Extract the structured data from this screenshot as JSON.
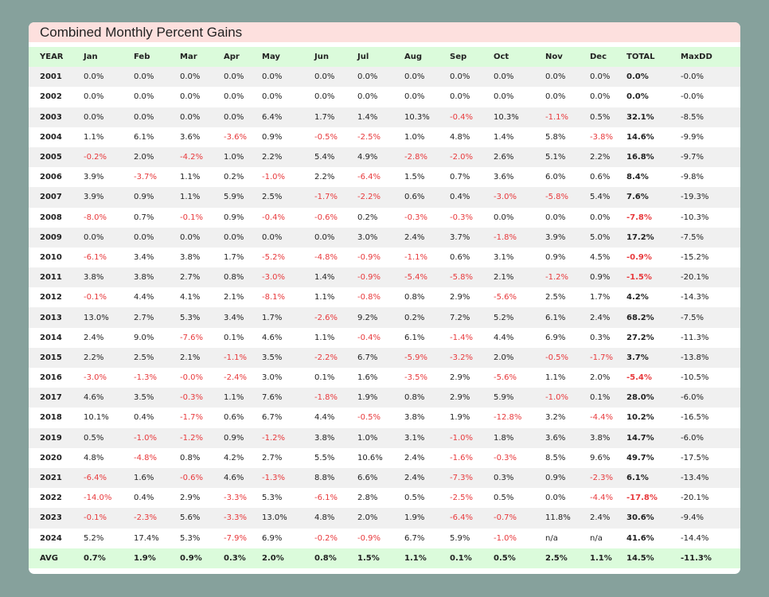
{
  "title": "Combined Monthly Percent Gains",
  "columns": [
    "YEAR",
    "Jan",
    "Feb",
    "Mar",
    "Apr",
    "May",
    "Jun",
    "Jul",
    "Aug",
    "Sep",
    "Oct",
    "Nov",
    "Dec",
    "TOTAL",
    "MaxDD"
  ],
  "rows": [
    [
      "2001",
      "0.0%",
      "0.0%",
      "0.0%",
      "0.0%",
      "0.0%",
      "0.0%",
      "0.0%",
      "0.0%",
      "0.0%",
      "0.0%",
      "0.0%",
      "0.0%",
      "0.0%",
      "-0.0%"
    ],
    [
      "2002",
      "0.0%",
      "0.0%",
      "0.0%",
      "0.0%",
      "0.0%",
      "0.0%",
      "0.0%",
      "0.0%",
      "0.0%",
      "0.0%",
      "0.0%",
      "0.0%",
      "0.0%",
      "-0.0%"
    ],
    [
      "2003",
      "0.0%",
      "0.0%",
      "0.0%",
      "0.0%",
      "6.4%",
      "1.7%",
      "1.4%",
      "10.3%",
      "-0.4%",
      "10.3%",
      "-1.1%",
      "0.5%",
      "32.1%",
      "-8.5%"
    ],
    [
      "2004",
      "1.1%",
      "6.1%",
      "3.6%",
      "-3.6%",
      "0.9%",
      "-0.5%",
      "-2.5%",
      "1.0%",
      "4.8%",
      "1.4%",
      "5.8%",
      "-3.8%",
      "14.6%",
      "-9.9%"
    ],
    [
      "2005",
      "-0.2%",
      "2.0%",
      "-4.2%",
      "1.0%",
      "2.2%",
      "5.4%",
      "4.9%",
      "-2.8%",
      "-2.0%",
      "2.6%",
      "5.1%",
      "2.2%",
      "16.8%",
      "-9.7%"
    ],
    [
      "2006",
      "3.9%",
      "-3.7%",
      "1.1%",
      "0.2%",
      "-1.0%",
      "2.2%",
      "-6.4%",
      "1.5%",
      "0.7%",
      "3.6%",
      "6.0%",
      "0.6%",
      "8.4%",
      "-9.8%"
    ],
    [
      "2007",
      "3.9%",
      "0.9%",
      "1.1%",
      "5.9%",
      "2.5%",
      "-1.7%",
      "-2.2%",
      "0.6%",
      "0.4%",
      "-3.0%",
      "-5.8%",
      "5.4%",
      "7.6%",
      "-19.3%"
    ],
    [
      "2008",
      "-8.0%",
      "0.7%",
      "-0.1%",
      "0.9%",
      "-0.4%",
      "-0.6%",
      "0.2%",
      "-0.3%",
      "-0.3%",
      "0.0%",
      "0.0%",
      "0.0%",
      "-7.8%",
      "-10.3%"
    ],
    [
      "2009",
      "0.0%",
      "0.0%",
      "0.0%",
      "0.0%",
      "0.0%",
      "0.0%",
      "3.0%",
      "2.4%",
      "3.7%",
      "-1.8%",
      "3.9%",
      "5.0%",
      "17.2%",
      "-7.5%"
    ],
    [
      "2010",
      "-6.1%",
      "3.4%",
      "3.8%",
      "1.7%",
      "-5.2%",
      "-4.8%",
      "-0.9%",
      "-1.1%",
      "0.6%",
      "3.1%",
      "0.9%",
      "4.5%",
      "-0.9%",
      "-15.2%"
    ],
    [
      "2011",
      "3.8%",
      "3.8%",
      "2.7%",
      "0.8%",
      "-3.0%",
      "1.4%",
      "-0.9%",
      "-5.4%",
      "-5.8%",
      "2.1%",
      "-1.2%",
      "0.9%",
      "-1.5%",
      "-20.1%"
    ],
    [
      "2012",
      "-0.1%",
      "4.4%",
      "4.1%",
      "2.1%",
      "-8.1%",
      "1.1%",
      "-0.8%",
      "0.8%",
      "2.9%",
      "-5.6%",
      "2.5%",
      "1.7%",
      "4.2%",
      "-14.3%"
    ],
    [
      "2013",
      "13.0%",
      "2.7%",
      "5.3%",
      "3.4%",
      "1.7%",
      "-2.6%",
      "9.2%",
      "0.2%",
      "7.2%",
      "5.2%",
      "6.1%",
      "2.4%",
      "68.2%",
      "-7.5%"
    ],
    [
      "2014",
      "2.4%",
      "9.0%",
      "-7.6%",
      "0.1%",
      "4.6%",
      "1.1%",
      "-0.4%",
      "6.1%",
      "-1.4%",
      "4.4%",
      "6.9%",
      "0.3%",
      "27.2%",
      "-11.3%"
    ],
    [
      "2015",
      "2.2%",
      "2.5%",
      "2.1%",
      "-1.1%",
      "3.5%",
      "-2.2%",
      "6.7%",
      "-5.9%",
      "-3.2%",
      "2.0%",
      "-0.5%",
      "-1.7%",
      "3.7%",
      "-13.8%"
    ],
    [
      "2016",
      "-3.0%",
      "-1.3%",
      "-0.0%",
      "-2.4%",
      "3.0%",
      "0.1%",
      "1.6%",
      "-3.5%",
      "2.9%",
      "-5.6%",
      "1.1%",
      "2.0%",
      "-5.4%",
      "-10.5%"
    ],
    [
      "2017",
      "4.6%",
      "3.5%",
      "-0.3%",
      "1.1%",
      "7.6%",
      "-1.8%",
      "1.9%",
      "0.8%",
      "2.9%",
      "5.9%",
      "-1.0%",
      "0.1%",
      "28.0%",
      "-6.0%"
    ],
    [
      "2018",
      "10.1%",
      "0.4%",
      "-1.7%",
      "0.6%",
      "6.7%",
      "4.4%",
      "-0.5%",
      "3.8%",
      "1.9%",
      "-12.8%",
      "3.2%",
      "-4.4%",
      "10.2%",
      "-16.5%"
    ],
    [
      "2019",
      "0.5%",
      "-1.0%",
      "-1.2%",
      "0.9%",
      "-1.2%",
      "3.8%",
      "1.0%",
      "3.1%",
      "-1.0%",
      "1.8%",
      "3.6%",
      "3.8%",
      "14.7%",
      "-6.0%"
    ],
    [
      "2020",
      "4.8%",
      "-4.8%",
      "0.8%",
      "4.2%",
      "2.7%",
      "5.5%",
      "10.6%",
      "2.4%",
      "-1.6%",
      "-0.3%",
      "8.5%",
      "9.6%",
      "49.7%",
      "-17.5%"
    ],
    [
      "2021",
      "-6.4%",
      "1.6%",
      "-0.6%",
      "4.6%",
      "-1.3%",
      "8.8%",
      "6.6%",
      "2.4%",
      "-7.3%",
      "0.3%",
      "0.9%",
      "-2.3%",
      "6.1%",
      "-13.4%"
    ],
    [
      "2022",
      "-14.0%",
      "0.4%",
      "2.9%",
      "-3.3%",
      "5.3%",
      "-6.1%",
      "2.8%",
      "0.5%",
      "-2.5%",
      "0.5%",
      "0.0%",
      "-4.4%",
      "-17.8%",
      "-20.1%"
    ],
    [
      "2023",
      "-0.1%",
      "-2.3%",
      "5.6%",
      "-3.3%",
      "13.0%",
      "4.8%",
      "2.0%",
      "1.9%",
      "-6.4%",
      "-0.7%",
      "11.8%",
      "2.4%",
      "30.6%",
      "-9.4%"
    ],
    [
      "2024",
      "5.2%",
      "17.4%",
      "5.3%",
      "-7.9%",
      "6.9%",
      "-0.2%",
      "-0.9%",
      "6.7%",
      "5.9%",
      "-1.0%",
      "n/a",
      "n/a",
      "41.6%",
      "-14.4%"
    ]
  ],
  "avg": [
    "AVG",
    "0.7%",
    "1.9%",
    "0.9%",
    "0.3%",
    "2.0%",
    "0.8%",
    "1.5%",
    "1.1%",
    "0.1%",
    "0.5%",
    "2.5%",
    "1.1%",
    "14.5%",
    "-11.3%"
  ],
  "colors": {
    "background": "#86a19c",
    "title_bg": "#fde0de",
    "header_bg": "#dbfbdb",
    "negative": "#e8393c"
  }
}
